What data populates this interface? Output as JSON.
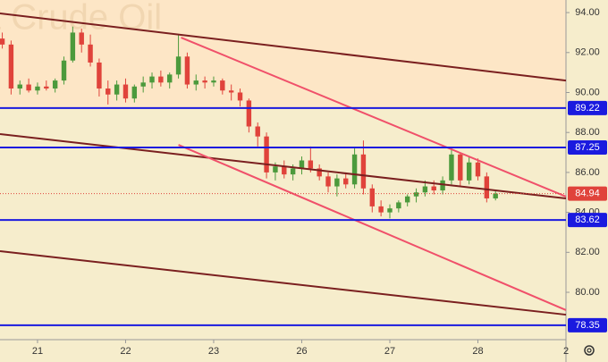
{
  "chart_data": {
    "type": "candlestick",
    "watermark": "t Crude Oil",
    "up_color": "#4c9a3c",
    "down_color": "#e0433b",
    "xlim": [
      -0.426,
      6.0
    ],
    "ylim": [
      77.63,
      94.63
    ],
    "xticks": [
      {
        "value": 0,
        "label": "21"
      },
      {
        "value": 1,
        "label": "22"
      },
      {
        "value": 2,
        "label": "23"
      },
      {
        "value": 3,
        "label": "26"
      },
      {
        "value": 4,
        "label": "27"
      },
      {
        "value": 5,
        "label": "28"
      },
      {
        "value": 6,
        "label": "2"
      }
    ],
    "yticks": [
      {
        "value": 80,
        "label": "80.00"
      },
      {
        "value": 82,
        "label": "82.00"
      },
      {
        "value": 84,
        "label": "84.00"
      },
      {
        "value": 86,
        "label": "86.00"
      },
      {
        "value": 88,
        "label": "88.00"
      },
      {
        "value": 90,
        "label": "90.00"
      },
      {
        "value": 92,
        "label": "92.00"
      },
      {
        "value": 94,
        "label": "94.00"
      }
    ],
    "x": [
      -0.4,
      -0.3,
      -0.2,
      -0.1,
      0.0,
      0.1,
      0.2,
      0.3,
      0.4,
      0.5,
      0.6,
      0.7,
      0.8,
      0.9,
      1.0,
      1.1,
      1.2,
      1.3,
      1.4,
      1.5,
      1.6,
      1.7,
      1.8,
      1.9,
      2.0,
      2.1,
      2.2,
      2.3,
      2.4,
      2.5,
      2.6,
      2.7,
      2.8,
      2.9,
      3.0,
      3.1,
      3.2,
      3.3,
      3.4,
      3.5,
      3.6,
      3.7,
      3.8,
      3.9,
      4.0,
      4.1,
      4.2,
      4.3,
      4.4,
      4.5,
      4.6,
      4.7,
      4.8,
      4.9,
      5.0,
      5.1,
      5.2
    ],
    "open": [
      92.7,
      92.4,
      90.2,
      90.4,
      90.1,
      90.3,
      90.2,
      90.6,
      91.6,
      93.0,
      92.4,
      91.5,
      90.2,
      89.9,
      90.4,
      89.7,
      90.3,
      90.5,
      90.8,
      90.5,
      90.9,
      91.8,
      90.4,
      90.6,
      90.5,
      90.6,
      90.1,
      90.0,
      89.6,
      88.3,
      87.8,
      86.0,
      86.3,
      85.9,
      86.2,
      86.6,
      86.2,
      85.8,
      85.3,
      85.7,
      85.4,
      86.9,
      85.2,
      84.3,
      84.0,
      84.2,
      84.5,
      84.8,
      85.0,
      85.3,
      85.1,
      85.6,
      86.9,
      85.6,
      86.5,
      85.8,
      84.7
    ],
    "high": [
      93.0,
      92.6,
      90.6,
      90.7,
      90.5,
      90.6,
      90.7,
      91.8,
      93.3,
      93.2,
      92.9,
      91.7,
      90.6,
      90.6,
      90.7,
      90.4,
      90.8,
      91.0,
      91.1,
      91.0,
      92.9,
      92.0,
      90.9,
      90.8,
      90.8,
      90.7,
      90.4,
      90.2,
      89.7,
      88.5,
      88.0,
      86.5,
      86.6,
      86.4,
      86.8,
      87.3,
      86.4,
      86.0,
      85.9,
      86.0,
      87.2,
      87.6,
      85.4,
      84.6,
      84.4,
      84.6,
      84.9,
      85.2,
      85.6,
      85.6,
      85.8,
      87.2,
      87.0,
      86.8,
      86.7,
      86.0,
      85.1
    ],
    "low": [
      92.2,
      89.9,
      89.9,
      90.0,
      89.9,
      90.1,
      90.0,
      90.4,
      91.5,
      92.0,
      91.3,
      89.8,
      89.4,
      89.6,
      89.5,
      89.5,
      90.0,
      90.2,
      90.3,
      90.2,
      90.7,
      90.2,
      90.1,
      90.2,
      90.3,
      89.9,
      89.6,
      89.3,
      88.0,
      87.3,
      85.7,
      85.6,
      85.7,
      85.6,
      85.9,
      86.0,
      85.6,
      85.0,
      84.8,
      85.2,
      85.2,
      84.9,
      84.0,
      83.8,
      83.7,
      84.0,
      84.3,
      84.5,
      84.8,
      84.9,
      84.9,
      85.4,
      85.3,
      85.4,
      85.6,
      84.5,
      84.6
    ],
    "close": [
      92.4,
      90.2,
      90.4,
      90.1,
      90.3,
      90.2,
      90.6,
      91.6,
      93.0,
      92.4,
      91.5,
      90.2,
      89.9,
      90.4,
      89.7,
      90.3,
      90.5,
      90.8,
      90.5,
      90.9,
      91.8,
      90.4,
      90.6,
      90.5,
      90.6,
      90.1,
      90.0,
      89.6,
      88.3,
      87.8,
      86.0,
      86.3,
      85.9,
      86.2,
      86.6,
      86.2,
      85.8,
      85.3,
      85.7,
      85.4,
      86.9,
      85.2,
      84.3,
      84.0,
      84.2,
      84.5,
      84.8,
      85.0,
      85.3,
      85.1,
      85.6,
      86.9,
      85.6,
      86.5,
      85.8,
      84.7,
      84.94
    ],
    "levels": [
      {
        "value": 89.22,
        "color": "#1a1adf"
      },
      {
        "value": 87.25,
        "color": "#1a1adf"
      },
      {
        "value": 83.62,
        "color": "#1a1adf"
      },
      {
        "value": 78.35,
        "color": "#1a1adf"
      }
    ],
    "last_price": {
      "value": 84.94,
      "color": "#e0433b"
    },
    "trendlines": [
      {
        "x": [
          -0.426,
          6.0
        ],
        "y": [
          93.96,
          90.6
        ],
        "color": "#7a1f1f"
      },
      {
        "x": [
          -0.426,
          6.0
        ],
        "y": [
          87.92,
          84.7
        ],
        "color": "#7a1f1f"
      },
      {
        "x": [
          -0.426,
          6.0
        ],
        "y": [
          82.06,
          78.88
        ],
        "color": "#7a1f1f"
      },
      {
        "x": [
          1.63,
          6.0
        ],
        "y": [
          92.75,
          84.79
        ],
        "color": "#f0506a"
      },
      {
        "x": [
          1.6,
          6.0
        ],
        "y": [
          87.38,
          79.11
        ],
        "color": "#f0506a"
      }
    ]
  }
}
